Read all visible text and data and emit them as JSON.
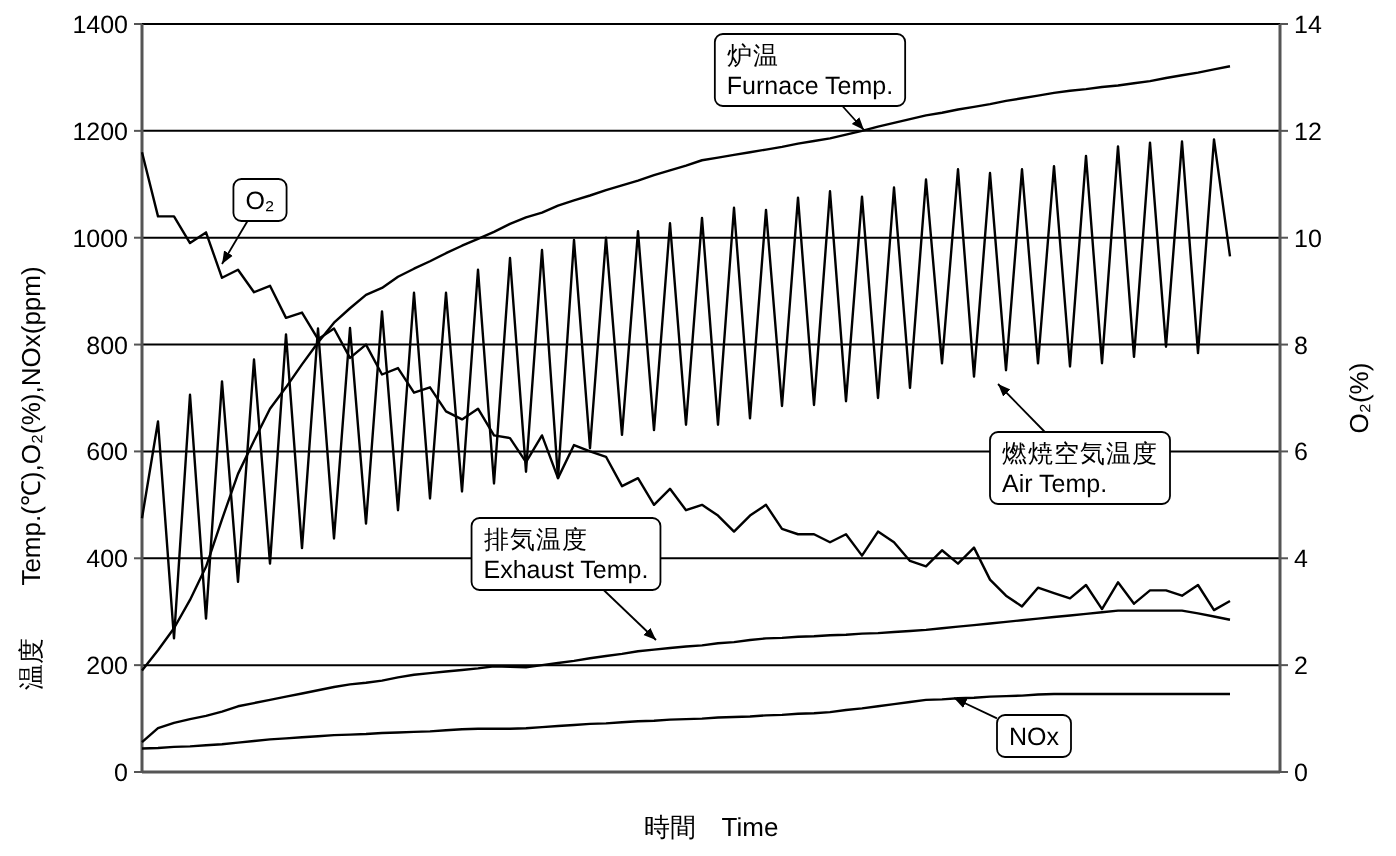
{
  "chart_data": {
    "type": "line",
    "xlabel": "時間　Time",
    "ylabel": "温度　　Temp.(℃),O₂(%),NOx(ppm)",
    "y2label": "O₂(%)",
    "categories": [
      null,
      null,
      null,
      null,
      null,
      null,
      null,
      null,
      null,
      null,
      null,
      null,
      null,
      null,
      null,
      null,
      null,
      null,
      null,
      null,
      null,
      null,
      null,
      null,
      null,
      null,
      null,
      null,
      null,
      null,
      null,
      null,
      null,
      null,
      null,
      null,
      null,
      null,
      null,
      null,
      null,
      null,
      null,
      null,
      null,
      null,
      null,
      null,
      null,
      null,
      null,
      null,
      null,
      null,
      null,
      null,
      null,
      null,
      null,
      null,
      null,
      null,
      null,
      null,
      null,
      null,
      null,
      null,
      null
    ],
    "ylim": [
      0,
      1400
    ],
    "yticks": [
      0,
      200,
      400,
      600,
      800,
      1000,
      1200,
      1400
    ],
    "y2lim": [
      0,
      14
    ],
    "y2ticks": [
      0,
      2,
      4,
      6,
      8,
      10,
      12,
      14
    ],
    "grid": "y",
    "line_style": "solid",
    "series": [
      {
        "color": "#000000",
        "values": [
          475,
          656,
          250,
          706,
          287,
          731,
          356,
          772,
          390,
          819,
          419,
          830,
          437,
          831,
          465,
          862,
          490,
          897,
          512,
          897,
          525,
          940,
          540,
          962,
          562,
          977,
          550,
          996,
          606,
          1000,
          631,
          1012,
          640,
          1027,
          650,
          1037,
          650,
          1056,
          662,
          1052,
          685,
          1075,
          687,
          1087,
          694,
          1077,
          700,
          1094,
          719,
          1109,
          765,
          1128,
          740,
          1121,
          752,
          1128,
          765,
          1134,
          759,
          1153,
          765,
          1171,
          777,
          1178,
          796,
          1180,
          784,
          1184,
          965
        ]
      },
      {
        "color": "#000000",
        "values": [
          190,
          228,
          269,
          322,
          384,
          473,
          558,
          620,
          680,
          720,
          763,
          804,
          841,
          868,
          893,
          906,
          927,
          942,
          956,
          971,
          985,
          998,
          1011,
          1026,
          1038,
          1047,
          1060,
          1070,
          1079,
          1089,
          1098,
          1107,
          1117,
          1126,
          1135,
          1145,
          1150,
          1155,
          1160,
          1165,
          1170,
          1176,
          1181,
          1186,
          1193,
          1200,
          1208,
          1215,
          1222,
          1229,
          1234,
          1240,
          1245,
          1250,
          1256,
          1261,
          1266,
          1271,
          1275,
          1278,
          1282,
          1285,
          1289,
          1293,
          1299,
          1304,
          1309,
          1315,
          1321
        ]
      },
      {
        "color": "#000000",
        "axis": "y2",
        "values": [
          11.6,
          10.4,
          10.4,
          9.9,
          10.1,
          9.25,
          9.4,
          8.98,
          9.1,
          8.5,
          8.6,
          8.1,
          8.3,
          7.75,
          8.0,
          7.44,
          7.56,
          7.1,
          7.2,
          6.75,
          6.6,
          6.8,
          6.3,
          6.25,
          5.8,
          6.3,
          5.5,
          6.12,
          6.0,
          5.9,
          5.35,
          5.5,
          5.0,
          5.3,
          4.9,
          5.0,
          4.8,
          4.5,
          4.8,
          5.0,
          4.55,
          4.45,
          4.45,
          4.3,
          4.45,
          4.05,
          4.5,
          4.3,
          3.95,
          3.85,
          4.15,
          3.9,
          4.2,
          3.6,
          3.3,
          3.1,
          3.45,
          3.35,
          3.25,
          3.5,
          3.05,
          3.55,
          3.15,
          3.4,
          3.4,
          3.3,
          3.5,
          3.03,
          3.2
        ]
      },
      {
        "color": "#000000",
        "values": [
          56,
          82,
          92,
          99,
          105,
          113,
          123,
          129,
          135,
          141,
          147,
          153,
          159,
          164,
          167,
          171,
          177,
          182,
          185,
          188,
          191,
          194,
          198,
          197,
          196,
          200,
          204,
          208,
          213,
          217,
          221,
          226,
          229,
          232,
          235,
          237,
          241,
          243,
          247,
          250,
          251,
          253,
          254,
          256,
          257,
          259,
          260,
          262,
          264,
          266,
          269,
          272,
          275,
          278,
          281,
          284,
          287,
          290,
          293,
          296,
          299,
          302,
          302,
          302,
          302,
          302,
          297,
          291,
          285
        ]
      },
      {
        "color": "#000000",
        "values": [
          44,
          45,
          47,
          48,
          50,
          52,
          55,
          58,
          61,
          63,
          65,
          67,
          69,
          70,
          71,
          73,
          74,
          75,
          76,
          78,
          80,
          81,
          81,
          81,
          82,
          84,
          86,
          88,
          90,
          91,
          93,
          95,
          96,
          98,
          99,
          100,
          102,
          103,
          104,
          106,
          107,
          109,
          110,
          112,
          116,
          119,
          123,
          127,
          131,
          135,
          136,
          138,
          139,
          141,
          142,
          143,
          145,
          146,
          146,
          146,
          146,
          146,
          146,
          146,
          146,
          146,
          146,
          146,
          146
        ]
      }
    ],
    "annotations": [
      "O₂",
      "炉温\nFurnace Temp.",
      "排気温度\nExhaust Temp.",
      "燃焼空気温度\nAir Temp.",
      "NOx"
    ]
  }
}
